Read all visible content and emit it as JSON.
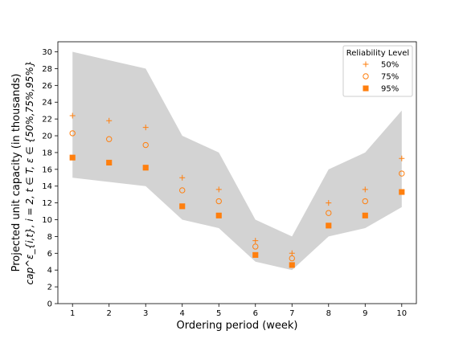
{
  "chart_data": {
    "type": "scatter",
    "title": "",
    "xlabel": "Ordering period (week)",
    "ylabel_lines": [
      "Projected unit capacity (in thousands)",
      "cap^ε_{i,t}, i = 2,  t ∈ T, ε ∈ {50%,75%,95%}"
    ],
    "x": [
      1,
      2,
      3,
      4,
      5,
      6,
      7,
      8,
      9,
      10
    ],
    "xlim": [
      0.6,
      10.4
    ],
    "ylim": [
      0,
      31.2
    ],
    "xticks": [
      "1",
      "2",
      "3",
      "4",
      "5",
      "6",
      "7",
      "8",
      "9",
      "10"
    ],
    "yticks": [
      "0",
      "2",
      "4",
      "6",
      "8",
      "10",
      "12",
      "14",
      "16",
      "18",
      "20",
      "22",
      "24",
      "26",
      "28",
      "30"
    ],
    "band": {
      "upper": [
        30,
        29,
        28,
        20,
        18,
        10,
        8,
        16,
        18,
        23
      ],
      "lower": [
        15,
        14.5,
        14,
        10,
        9,
        5,
        4,
        8,
        9,
        11.5
      ],
      "color": "#d3d3d3"
    },
    "series_color": "#ff7f0e",
    "legend_title": "Reliability Level",
    "legend_position": "top-right",
    "series": [
      {
        "name": "50%",
        "marker": "plus",
        "values": [
          22.4,
          21.8,
          21.0,
          15.0,
          13.6,
          7.5,
          6.0,
          12.0,
          13.6,
          17.3
        ]
      },
      {
        "name": "75%",
        "marker": "circle-open",
        "values": [
          20.3,
          19.6,
          18.9,
          13.5,
          12.2,
          6.8,
          5.4,
          10.8,
          12.2,
          15.5
        ]
      },
      {
        "name": "95%",
        "marker": "square-filled",
        "values": [
          17.4,
          16.8,
          16.2,
          11.6,
          10.5,
          5.8,
          4.6,
          9.3,
          10.5,
          13.3
        ]
      }
    ]
  }
}
